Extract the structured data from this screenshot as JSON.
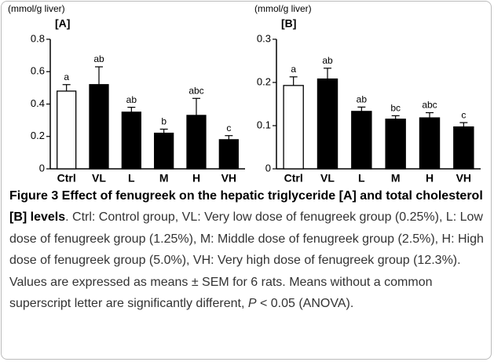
{
  "chart_data": [
    {
      "type": "bar",
      "ylabel": "(mmol/g liver)",
      "panel_label": "[A]",
      "categories": [
        "Ctrl",
        "VL",
        "L",
        "M",
        "H",
        "VH"
      ],
      "values": [
        0.48,
        0.52,
        0.35,
        0.22,
        0.33,
        0.18
      ],
      "errors": [
        0.04,
        0.11,
        0.03,
        0.025,
        0.105,
        0.025
      ],
      "letters": [
        "a",
        "ab",
        "ab",
        "b",
        "abc",
        "c"
      ],
      "colors": [
        "#ffffff",
        "#000000",
        "#000000",
        "#000000",
        "#000000",
        "#000000"
      ],
      "ylim": [
        0,
        0.8
      ],
      "yticks": [
        0,
        0.2,
        0.4,
        0.6,
        0.8
      ]
    },
    {
      "type": "bar",
      "ylabel": "(mmol/g liver)",
      "panel_label": "[B]",
      "categories": [
        "Ctrl",
        "VL",
        "L",
        "M",
        "H",
        "VH"
      ],
      "values": [
        0.193,
        0.208,
        0.133,
        0.115,
        0.118,
        0.097
      ],
      "errors": [
        0.02,
        0.025,
        0.01,
        0.008,
        0.012,
        0.01
      ],
      "letters": [
        "a",
        "ab",
        "ab",
        "bc",
        "abc",
        "c"
      ],
      "colors": [
        "#ffffff",
        "#000000",
        "#000000",
        "#000000",
        "#000000",
        "#000000"
      ],
      "ylim": [
        0,
        0.3
      ],
      "yticks": [
        0,
        0.1,
        0.2,
        0.3
      ]
    }
  ],
  "caption": {
    "title": "Figure 3 Effect of fenugreek on the hepatic triglyceride [A] and total cholesterol [B] levels",
    "body": ". Ctrl: Control group, VL: Very low dose of fenugreek group (0.25%), L: Low dose of fenugreek group (1.25%), M: Middle dose of fenugreek group (2.5%), H: High dose of fenugreek group (5.0%), VH: Very high dose of fenugreek group (12.3%). Values are expressed as means ± SEM for 6 rats. Means without a common superscript letter are significantly different, ",
    "italic": "P",
    "tail": " < 0.05 (ANOVA)."
  }
}
